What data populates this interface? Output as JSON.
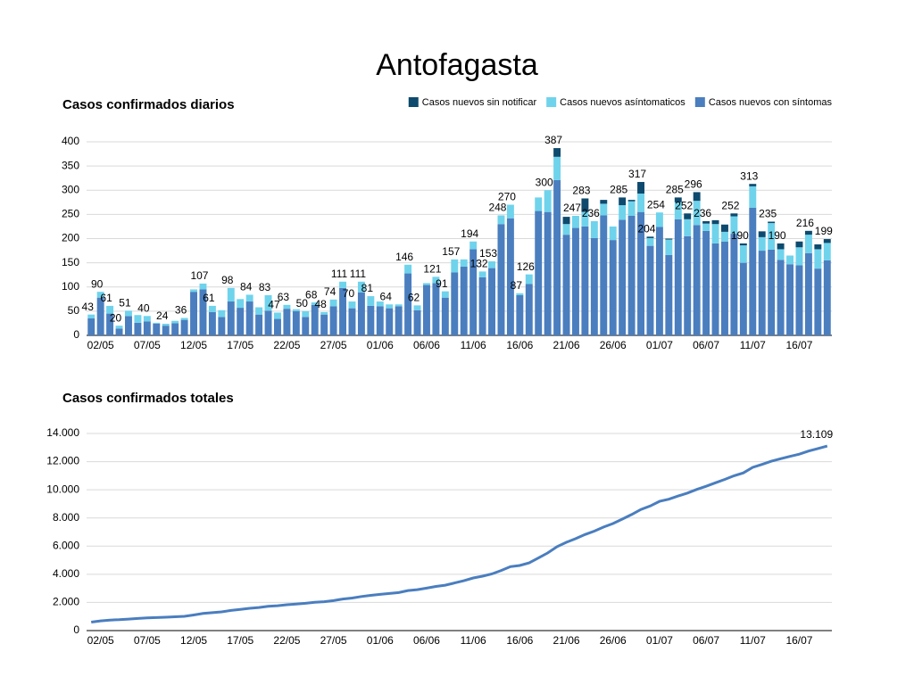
{
  "title": "Antofagasta",
  "chart_data": [
    {
      "type": "bar",
      "stacked": true,
      "title": "Casos confirmados diarios",
      "grid": true,
      "legend": "top-right",
      "categories": [
        null,
        "02/05",
        null,
        null,
        null,
        null,
        "07/05",
        null,
        null,
        null,
        null,
        "12/05",
        null,
        null,
        null,
        null,
        "17/05",
        null,
        null,
        null,
        null,
        "22/05",
        null,
        null,
        null,
        null,
        "27/05",
        null,
        null,
        null,
        null,
        "01/06",
        null,
        null,
        null,
        null,
        "06/06",
        null,
        null,
        null,
        null,
        "11/06",
        null,
        null,
        null,
        null,
        "16/06",
        null,
        null,
        null,
        null,
        "21/06",
        null,
        null,
        null,
        null,
        "26/06",
        null,
        null,
        null,
        null,
        "01/07",
        null,
        null,
        null,
        null,
        "06/07",
        null,
        null,
        null,
        null,
        "11/07",
        null,
        null,
        null,
        null,
        "16/07",
        null,
        null,
        null
      ],
      "series": [
        {
          "name": "Casos nuevos sin notificar",
          "color": "#0d4a6e",
          "values": [
            0,
            0,
            0,
            0,
            0,
            0,
            0,
            0,
            0,
            0,
            0,
            0,
            0,
            0,
            0,
            0,
            0,
            0,
            0,
            0,
            0,
            0,
            0,
            0,
            0,
            0,
            0,
            0,
            0,
            0,
            0,
            0,
            0,
            0,
            0,
            0,
            0,
            0,
            0,
            0,
            0,
            0,
            0,
            0,
            0,
            0,
            0,
            0,
            0,
            0,
            18,
            15,
            0,
            28,
            0,
            8,
            0,
            16,
            3,
            24,
            3,
            0,
            2,
            10,
            12,
            18,
            5,
            8,
            15,
            6,
            4,
            5,
            12,
            3,
            12,
            0,
            12,
            8,
            10,
            8
          ]
        },
        {
          "name": "Casos nuevos asíntomaticos",
          "color": "#6fd3ec",
          "values": [
            8,
            12,
            16,
            6,
            11,
            16,
            11,
            2,
            4,
            5,
            4,
            5,
            12,
            13,
            14,
            28,
            18,
            14,
            15,
            32,
            13,
            8,
            4,
            12,
            5,
            5,
            14,
            13,
            14,
            22,
            20,
            10,
            8,
            4,
            18,
            10,
            4,
            13,
            13,
            27,
            15,
            16,
            12,
            14,
            18,
            28,
            4,
            20,
            28,
            45,
            48,
            22,
            25,
            30,
            35,
            24,
            28,
            30,
            30,
            38,
            16,
            30,
            32,
            35,
            35,
            50,
            15,
            40,
            20,
            36,
            36,
            44,
            28,
            55,
            22,
            18,
            37,
            38,
            40,
            36
          ]
        },
        {
          "name": "Casos nuevos con síntomas",
          "color": "#4a7ebf",
          "values": [
            35,
            78,
            45,
            14,
            40,
            26,
            29,
            24,
            20,
            25,
            32,
            90,
            95,
            48,
            38,
            70,
            57,
            70,
            43,
            51,
            34,
            55,
            50,
            38,
            63,
            43,
            60,
            98,
            56,
            89,
            61,
            60,
            56,
            60,
            128,
            52,
            104,
            108,
            78,
            130,
            142,
            178,
            120,
            139,
            230,
            242,
            83,
            106,
            257,
            255,
            321,
            208,
            222,
            225,
            201,
            248,
            197,
            239,
            247,
            255,
            185,
            224,
            166,
            240,
            205,
            228,
            216,
            190,
            194,
            210,
            150,
            264,
            175,
            177,
            156,
            147,
            145,
            170,
            138,
            155
          ]
        }
      ],
      "totals": [
        43,
        90,
        61,
        20,
        51,
        null,
        40,
        null,
        24,
        null,
        36,
        null,
        107,
        61,
        null,
        98,
        null,
        84,
        null,
        83,
        47,
        63,
        null,
        50,
        68,
        48,
        74,
        111,
        70,
        111,
        81,
        null,
        64,
        null,
        146,
        62,
        null,
        121,
        91,
        157,
        null,
        194,
        132,
        153,
        248,
        270,
        87,
        126,
        null,
        300,
        387,
        null,
        247,
        283,
        236,
        null,
        null,
        285,
        null,
        317,
        204,
        254,
        null,
        285,
        252,
        296,
        236,
        null,
        null,
        252,
        190,
        313,
        null,
        235,
        190,
        null,
        null,
        216,
        null,
        199
      ],
      "ylim": [
        0,
        400
      ],
      "yticks": [
        0,
        50,
        100,
        150,
        200,
        250,
        300,
        350,
        400
      ]
    },
    {
      "type": "line",
      "title": "Casos confirmados totales",
      "grid": true,
      "categories": [
        null,
        "02/05",
        null,
        null,
        null,
        null,
        "07/05",
        null,
        null,
        null,
        null,
        "12/05",
        null,
        null,
        null,
        null,
        "17/05",
        null,
        null,
        null,
        null,
        "22/05",
        null,
        null,
        null,
        null,
        "27/05",
        null,
        null,
        null,
        null,
        "01/06",
        null,
        null,
        null,
        null,
        "06/06",
        null,
        null,
        null,
        null,
        "11/06",
        null,
        null,
        null,
        null,
        "16/06",
        null,
        null,
        null,
        null,
        "21/06",
        null,
        null,
        null,
        null,
        "26/06",
        null,
        null,
        null,
        null,
        "01/07",
        null,
        null,
        null,
        null,
        "06/07",
        null,
        null,
        null,
        null,
        "11/07",
        null,
        null,
        null,
        null,
        "16/07",
        null,
        null,
        null
      ],
      "color": "#4a7ebf",
      "values": [
        600,
        690,
        750,
        770,
        820,
        860,
        900,
        925,
        950,
        980,
        1015,
        1110,
        1215,
        1275,
        1330,
        1430,
        1500,
        1585,
        1640,
        1725,
        1770,
        1835,
        1890,
        1940,
        2005,
        2055,
        2130,
        2240,
        2310,
        2420,
        2500,
        2570,
        2635,
        2700,
        2845,
        2905,
        3015,
        3135,
        3225,
        3385,
        3540,
        3735,
        3865,
        4020,
        4270,
        4540,
        4625,
        4810,
        5155,
        5515,
        5960,
        6270,
        6530,
        6820,
        7065,
        7355,
        7600,
        7920,
        8240,
        8600,
        8850,
        9180,
        9330,
        9560,
        9770,
        10030,
        10250,
        10500,
        10740,
        11000,
        11200,
        11590,
        11800,
        12030,
        12210,
        12370,
        12530,
        12750,
        12930,
        13109
      ],
      "value_labels": [
        null,
        null,
        null,
        null,
        null,
        null,
        null,
        null,
        null,
        null,
        null,
        null,
        null,
        null,
        null,
        null,
        null,
        null,
        null,
        null,
        null,
        null,
        null,
        null,
        null,
        null,
        null,
        null,
        null,
        null,
        null,
        null,
        null,
        null,
        null,
        null,
        null,
        null,
        null,
        null,
        null,
        null,
        null,
        null,
        null,
        null,
        null,
        null,
        null,
        null,
        null,
        null,
        null,
        null,
        null,
        null,
        null,
        null,
        null,
        null,
        null,
        null,
        null,
        null,
        null,
        null,
        null,
        null,
        null,
        null,
        null,
        null,
        null,
        null,
        null,
        null,
        null,
        null,
        null,
        "13.109"
      ],
      "ylim": [
        0,
        14000
      ],
      "yticks": [
        0,
        {
          "value": 2000,
          "label": "2.000"
        },
        {
          "value": 4000,
          "label": "4.000"
        },
        {
          "value": 6000,
          "label": "6.000"
        },
        {
          "value": 8000,
          "label": "8.000"
        },
        {
          "value": 10000,
          "label": "10.000"
        },
        {
          "value": 12000,
          "label": "12.000"
        },
        {
          "value": 14000,
          "label": "14.000"
        }
      ]
    }
  ]
}
